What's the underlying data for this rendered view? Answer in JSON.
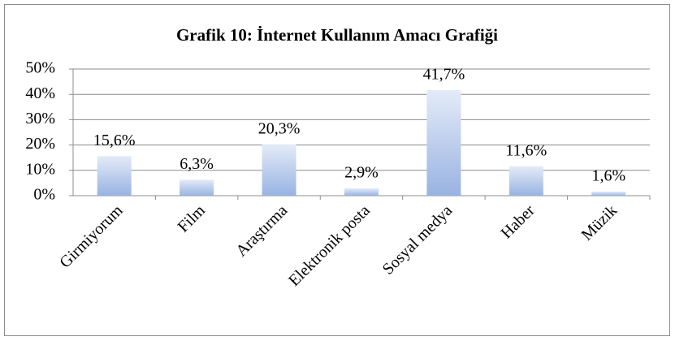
{
  "chart_data": {
    "type": "bar",
    "title": "Grafik 10: İnternet Kullanım  Amacı Grafiği",
    "categories": [
      "Girmiyorum",
      "Film",
      "Araştırma",
      "Elektronik posta",
      "Sosyal medya",
      "Haber",
      "Müzik"
    ],
    "values": [
      15.6,
      6.3,
      20.3,
      2.9,
      41.7,
      11.6,
      1.6
    ],
    "value_labels": [
      "15,6%",
      "6,3%",
      "20,3%",
      "2,9%",
      "41,7%",
      "11,6%",
      "1,6%"
    ],
    "color": "#98b3e2",
    "ylim": [
      0,
      50
    ],
    "yticks": [
      {
        "value": 0,
        "label": "0%"
      },
      {
        "value": 10,
        "label": "10%"
      },
      {
        "value": 20,
        "label": "20%"
      },
      {
        "value": 30,
        "label": "30%"
      },
      {
        "value": 40,
        "label": "40%"
      },
      {
        "value": 50,
        "label": "50%"
      }
    ],
    "grid": true
  }
}
